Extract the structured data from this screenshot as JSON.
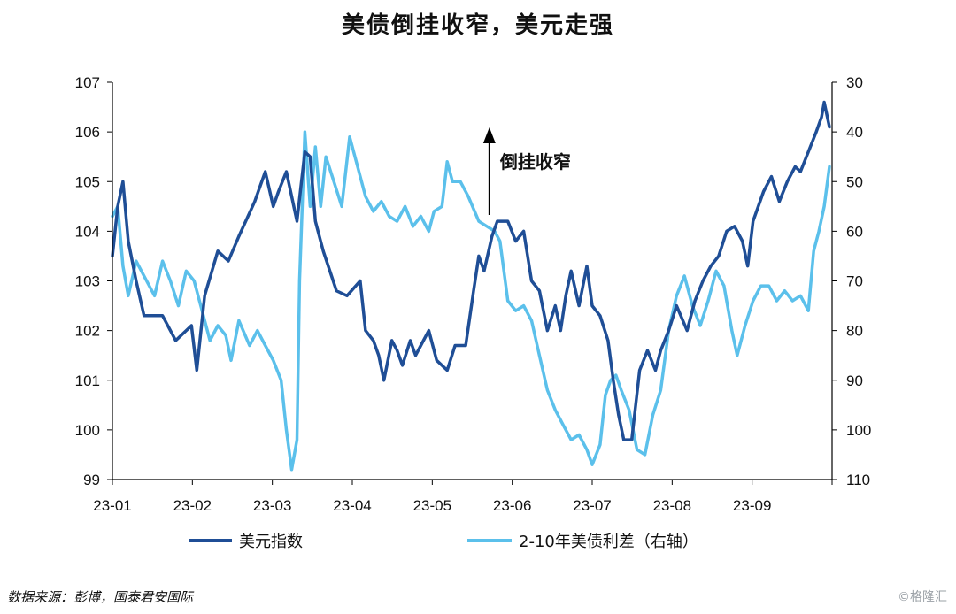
{
  "title": "美债倒挂收窄，美元走强",
  "source": "数据来源：彭博，国泰君安国际",
  "watermark": "©格隆汇",
  "colors": {
    "dxy": "#1F4E96",
    "spread": "#5BC0EB",
    "axis": "#000000"
  },
  "chart_data": {
    "type": "line",
    "x_tick_labels": [
      "23-01",
      "23-02",
      "23-03",
      "23-04",
      "23-05",
      "23-06",
      "23-07",
      "23-08",
      "23-09"
    ],
    "y_left": {
      "range": [
        99,
        107
      ],
      "ticks": [
        99,
        100,
        101,
        102,
        103,
        104,
        105,
        106,
        107
      ]
    },
    "y_right": {
      "range": [
        30,
        110
      ],
      "inverted": true,
      "ticks": [
        30,
        40,
        50,
        60,
        70,
        80,
        90,
        100,
        110
      ]
    },
    "grid": false,
    "legend_position": "bottom",
    "annotation": {
      "text": "倒挂收窄",
      "arrow": "up",
      "x": "2023-05-24"
    },
    "series": [
      {
        "name": "美元指数",
        "axis": "left",
        "color": "#1F4E96",
        "points": [
          [
            "2023-01-01",
            103.5
          ],
          [
            "2023-01-03",
            104.5
          ],
          [
            "2023-01-05",
            105.0
          ],
          [
            "2023-01-07",
            103.8
          ],
          [
            "2023-01-10",
            103.0
          ],
          [
            "2023-01-13",
            102.3
          ],
          [
            "2023-01-20",
            102.3
          ],
          [
            "2023-01-25",
            101.8
          ],
          [
            "2023-01-31",
            102.1
          ],
          [
            "2023-02-02",
            101.2
          ],
          [
            "2023-02-05",
            102.7
          ],
          [
            "2023-02-10",
            103.6
          ],
          [
            "2023-02-14",
            103.4
          ],
          [
            "2023-02-18",
            103.9
          ],
          [
            "2023-02-24",
            104.6
          ],
          [
            "2023-02-28",
            105.2
          ],
          [
            "2023-03-03",
            104.5
          ],
          [
            "2023-03-05",
            104.8
          ],
          [
            "2023-03-08",
            105.2
          ],
          [
            "2023-03-12",
            104.2
          ],
          [
            "2023-03-15",
            105.6
          ],
          [
            "2023-03-17",
            105.5
          ],
          [
            "2023-03-19",
            104.2
          ],
          [
            "2023-03-22",
            103.6
          ],
          [
            "2023-03-27",
            102.8
          ],
          [
            "2023-03-31",
            102.7
          ],
          [
            "2023-04-05",
            103.0
          ],
          [
            "2023-04-07",
            102.0
          ],
          [
            "2023-04-10",
            101.8
          ],
          [
            "2023-04-12",
            101.5
          ],
          [
            "2023-04-14",
            101.0
          ],
          [
            "2023-04-17",
            101.8
          ],
          [
            "2023-04-19",
            101.6
          ],
          [
            "2023-04-21",
            101.3
          ],
          [
            "2023-04-24",
            101.8
          ],
          [
            "2023-04-26",
            101.5
          ],
          [
            "2023-04-28",
            101.7
          ],
          [
            "2023-05-01",
            102.0
          ],
          [
            "2023-05-04",
            101.4
          ],
          [
            "2023-05-08",
            101.2
          ],
          [
            "2023-05-11",
            101.7
          ],
          [
            "2023-05-15",
            101.7
          ],
          [
            "2023-05-18",
            102.8
          ],
          [
            "2023-05-20",
            103.5
          ],
          [
            "2023-05-22",
            103.2
          ],
          [
            "2023-05-25",
            103.9
          ],
          [
            "2023-05-27",
            104.2
          ],
          [
            "2023-05-31",
            104.2
          ],
          [
            "2023-06-03",
            103.8
          ],
          [
            "2023-06-06",
            104.0
          ],
          [
            "2023-06-09",
            103.0
          ],
          [
            "2023-06-12",
            102.8
          ],
          [
            "2023-06-15",
            102.0
          ],
          [
            "2023-06-18",
            102.5
          ],
          [
            "2023-06-20",
            102.0
          ],
          [
            "2023-06-22",
            102.7
          ],
          [
            "2023-06-24",
            103.2
          ],
          [
            "2023-06-27",
            102.5
          ],
          [
            "2023-06-30",
            103.3
          ],
          [
            "2023-07-02",
            102.5
          ],
          [
            "2023-07-05",
            102.3
          ],
          [
            "2023-07-08",
            101.8
          ],
          [
            "2023-07-10",
            101.0
          ],
          [
            "2023-07-12",
            100.3
          ],
          [
            "2023-07-14",
            99.8
          ],
          [
            "2023-07-17",
            99.8
          ],
          [
            "2023-07-20",
            101.2
          ],
          [
            "2023-07-23",
            101.6
          ],
          [
            "2023-07-26",
            101.2
          ],
          [
            "2023-07-28",
            101.6
          ],
          [
            "2023-07-31",
            102.0
          ],
          [
            "2023-08-03",
            102.5
          ],
          [
            "2023-08-07",
            102.0
          ],
          [
            "2023-08-10",
            102.6
          ],
          [
            "2023-08-13",
            103.0
          ],
          [
            "2023-08-16",
            103.3
          ],
          [
            "2023-08-19",
            103.5
          ],
          [
            "2023-08-22",
            104.0
          ],
          [
            "2023-08-25",
            104.1
          ],
          [
            "2023-08-28",
            103.8
          ],
          [
            "2023-08-30",
            103.3
          ],
          [
            "2023-09-01",
            104.2
          ],
          [
            "2023-09-05",
            104.8
          ],
          [
            "2023-09-08",
            105.1
          ],
          [
            "2023-09-11",
            104.6
          ],
          [
            "2023-09-14",
            105.0
          ],
          [
            "2023-09-17",
            105.3
          ],
          [
            "2023-09-19",
            105.2
          ],
          [
            "2023-09-22",
            105.6
          ],
          [
            "2023-09-25",
            106.0
          ],
          [
            "2023-09-27",
            106.3
          ],
          [
            "2023-09-28",
            106.6
          ],
          [
            "2023-09-30",
            106.1
          ]
        ]
      },
      {
        "name": "2-10年美债利差（右轴）",
        "axis": "right",
        "color": "#5BC0EB",
        "points": [
          [
            "2023-01-01",
            57
          ],
          [
            "2023-01-03",
            55
          ],
          [
            "2023-01-05",
            67
          ],
          [
            "2023-01-07",
            73
          ],
          [
            "2023-01-10",
            66
          ],
          [
            "2023-01-13",
            69
          ],
          [
            "2023-01-17",
            73
          ],
          [
            "2023-01-20",
            66
          ],
          [
            "2023-01-23",
            70
          ],
          [
            "2023-01-26",
            75
          ],
          [
            "2023-01-29",
            68
          ],
          [
            "2023-02-01",
            70
          ],
          [
            "2023-02-04",
            76
          ],
          [
            "2023-02-07",
            82
          ],
          [
            "2023-02-10",
            79
          ],
          [
            "2023-02-13",
            81
          ],
          [
            "2023-02-15",
            86
          ],
          [
            "2023-02-18",
            78
          ],
          [
            "2023-02-22",
            83
          ],
          [
            "2023-02-25",
            80
          ],
          [
            "2023-02-28",
            83
          ],
          [
            "2023-03-03",
            86
          ],
          [
            "2023-03-06",
            90
          ],
          [
            "2023-03-08",
            100
          ],
          [
            "2023-03-10",
            108
          ],
          [
            "2023-03-12",
            102
          ],
          [
            "2023-03-13",
            70
          ],
          [
            "2023-03-15",
            40
          ],
          [
            "2023-03-17",
            55
          ],
          [
            "2023-03-19",
            43
          ],
          [
            "2023-03-21",
            55
          ],
          [
            "2023-03-23",
            45
          ],
          [
            "2023-03-26",
            50
          ],
          [
            "2023-03-29",
            55
          ],
          [
            "2023-04-01",
            41
          ],
          [
            "2023-04-04",
            47
          ],
          [
            "2023-04-07",
            53
          ],
          [
            "2023-04-10",
            56
          ],
          [
            "2023-04-13",
            54
          ],
          [
            "2023-04-16",
            57
          ],
          [
            "2023-04-19",
            58
          ],
          [
            "2023-04-22",
            55
          ],
          [
            "2023-04-25",
            59
          ],
          [
            "2023-04-28",
            57
          ],
          [
            "2023-05-01",
            60
          ],
          [
            "2023-05-03",
            56
          ],
          [
            "2023-05-06",
            55
          ],
          [
            "2023-05-08",
            46
          ],
          [
            "2023-05-10",
            50
          ],
          [
            "2023-05-13",
            50
          ],
          [
            "2023-05-16",
            53
          ],
          [
            "2023-05-20",
            58
          ],
          [
            "2023-05-23",
            59
          ],
          [
            "2023-05-26",
            60
          ],
          [
            "2023-05-28",
            62
          ],
          [
            "2023-05-31",
            74
          ],
          [
            "2023-06-03",
            76
          ],
          [
            "2023-06-06",
            75
          ],
          [
            "2023-06-09",
            78
          ],
          [
            "2023-06-12",
            85
          ],
          [
            "2023-06-15",
            92
          ],
          [
            "2023-06-18",
            96
          ],
          [
            "2023-06-21",
            99
          ],
          [
            "2023-06-24",
            102
          ],
          [
            "2023-06-27",
            101
          ],
          [
            "2023-06-30",
            104
          ],
          [
            "2023-07-02",
            107
          ],
          [
            "2023-07-05",
            103
          ],
          [
            "2023-07-07",
            93
          ],
          [
            "2023-07-09",
            90
          ],
          [
            "2023-07-11",
            89
          ],
          [
            "2023-07-13",
            92
          ],
          [
            "2023-07-16",
            96
          ],
          [
            "2023-07-19",
            104
          ],
          [
            "2023-07-22",
            105
          ],
          [
            "2023-07-25",
            97
          ],
          [
            "2023-07-28",
            92
          ],
          [
            "2023-07-31",
            80
          ],
          [
            "2023-08-03",
            73
          ],
          [
            "2023-08-06",
            69
          ],
          [
            "2023-08-09",
            75
          ],
          [
            "2023-08-12",
            79
          ],
          [
            "2023-08-15",
            74
          ],
          [
            "2023-08-18",
            68
          ],
          [
            "2023-08-21",
            71
          ],
          [
            "2023-08-24",
            80
          ],
          [
            "2023-08-26",
            85
          ],
          [
            "2023-08-29",
            79
          ],
          [
            "2023-09-01",
            74
          ],
          [
            "2023-09-04",
            71
          ],
          [
            "2023-09-07",
            71
          ],
          [
            "2023-09-10",
            74
          ],
          [
            "2023-09-13",
            72
          ],
          [
            "2023-09-16",
            74
          ],
          [
            "2023-09-19",
            73
          ],
          [
            "2023-09-22",
            76
          ],
          [
            "2023-09-24",
            64
          ],
          [
            "2023-09-26",
            60
          ],
          [
            "2023-09-28",
            55
          ],
          [
            "2023-09-30",
            47
          ]
        ]
      }
    ]
  }
}
